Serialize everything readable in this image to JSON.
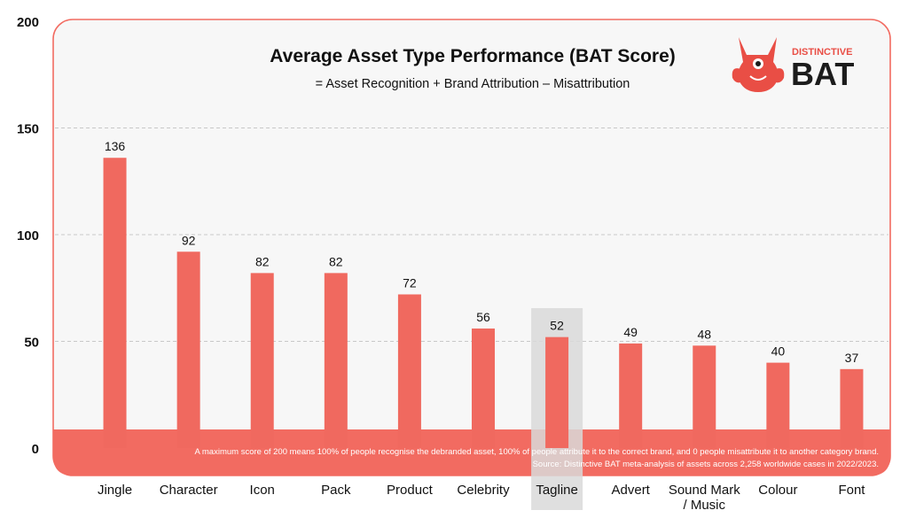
{
  "chart_data": {
    "type": "bar",
    "title": "Average Asset Type Performance (BAT Score)",
    "subtitle": "= Asset Recognition + Brand Attribution – Misattribution",
    "categories": [
      "Jingle",
      "Character",
      "Icon",
      "Pack",
      "Product",
      "Celebrity",
      "Tagline",
      "Advert",
      "Sound Mark / Music",
      "Colour",
      "Font"
    ],
    "category_lines": [
      [
        "Jingle"
      ],
      [
        "Character"
      ],
      [
        "Icon"
      ],
      [
        "Pack"
      ],
      [
        "Product"
      ],
      [
        "Celebrity"
      ],
      [
        "Tagline"
      ],
      [
        "Advert"
      ],
      [
        "Sound Mark",
        "/ Music"
      ],
      [
        "Colour"
      ],
      [
        "Font"
      ]
    ],
    "values": [
      136,
      92,
      82,
      82,
      72,
      56,
      52,
      49,
      48,
      40,
      37
    ],
    "highlighted_category": "Tagline",
    "ylim": [
      0,
      200
    ],
    "yticks": [
      0,
      50,
      100,
      150,
      200
    ],
    "xlabel": "",
    "ylabel": "",
    "grid": true,
    "bar_color": "#f0695f",
    "accent_color": "#f26b61",
    "highlight_color": "#d9d9d9",
    "footnote_lines": [
      "A maximum score of 200 means 100% of people recognise the debranded asset, 100% of people attribute it to the correct brand, and 0 people misattribute it to another category brand.",
      "Source: Distinctive BAT meta-analysis of assets across 2,258 worldwide cases in 2022/2023."
    ]
  },
  "logo": {
    "small_text": "DISTINCTIVE",
    "big_text": "BAT"
  }
}
